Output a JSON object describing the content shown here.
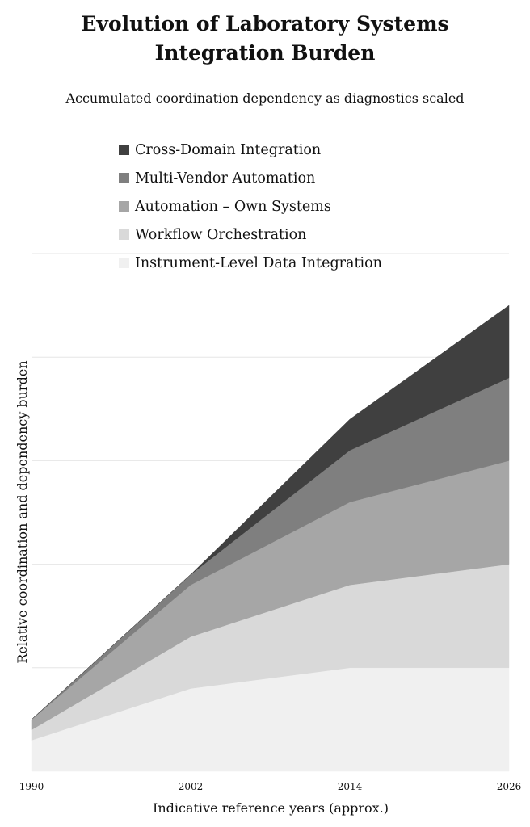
{
  "chart_data": {
    "type": "area",
    "stacked": true,
    "title": "Evolution of Laboratory Systems Integration Burden",
    "title_lines": [
      "Evolution of Laboratory Systems",
      "Integration Burden"
    ],
    "subtitle": "Accumulated coordination dependency as diagnostics scaled",
    "xlabel": "Indicative reference years (approx.)",
    "ylabel": "Relative coordination and dependency burden",
    "x": [
      1990,
      2002,
      2014,
      2026
    ],
    "x_tick_labels": [
      "1990",
      "2002",
      "2014",
      "2026"
    ],
    "ylim": [
      0,
      5
    ],
    "y_gridlines": [
      1,
      2,
      3,
      4
    ],
    "legend_position": "top",
    "series": [
      {
        "name": "Instrument-Level Data Integration",
        "values": [
          0.3,
          0.8,
          1.0,
          1.0
        ],
        "color": "#f0f0f0"
      },
      {
        "name": "Workflow Orchestration",
        "values": [
          0.1,
          0.5,
          0.8,
          1.0
        ],
        "color": "#d9d9d9"
      },
      {
        "name": "Automation – Own Systems",
        "values": [
          0.1,
          0.5,
          0.8,
          1.0
        ],
        "color": "#a6a6a6"
      },
      {
        "name": "Multi-Vendor Automation",
        "values": [
          0.0,
          0.1,
          0.5,
          0.8
        ],
        "color": "#7f7f7f"
      },
      {
        "name": "Cross-Domain Integration",
        "values": [
          0.0,
          0.0,
          0.3,
          0.7
        ],
        "color": "#404040"
      }
    ]
  }
}
